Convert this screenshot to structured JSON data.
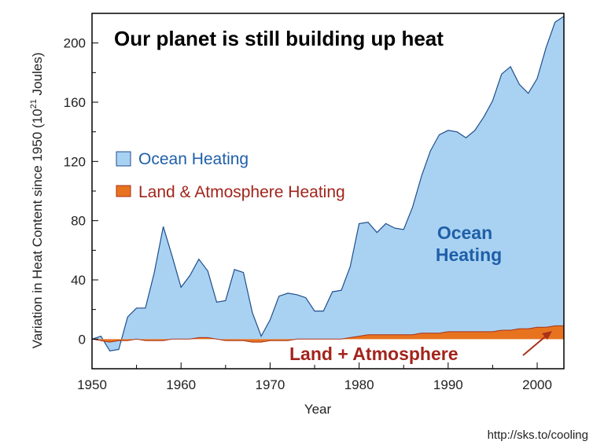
{
  "chart_data": {
    "type": "area",
    "title": "Our planet is still building up heat",
    "xlabel": "Year",
    "ylabel": "Variation in Heat Content since 1950 (10²¹ Joules)",
    "ylabel_main": "Variation in Heat Content since 1950 (10",
    "ylabel_sup": "21",
    "ylabel_end": " Joules)",
    "xlim": [
      1950,
      2003
    ],
    "ylim": [
      -20,
      220
    ],
    "xticks": [
      1950,
      1960,
      1970,
      1980,
      1990,
      2000
    ],
    "yticks": [
      0,
      40,
      80,
      120,
      160,
      200
    ],
    "grid": false,
    "legend_position": "left-middle",
    "colors": {
      "ocean_fill": "#a9d2f2",
      "ocean_line": "#1f4e8c",
      "land_fill": "#e8731f",
      "land_line": "#a8321a",
      "annotation_arrow": "#a8321a",
      "frame": "#000000"
    },
    "x": [
      1950,
      1951,
      1952,
      1953,
      1954,
      1955,
      1956,
      1957,
      1958,
      1959,
      1960,
      1961,
      1962,
      1963,
      1964,
      1965,
      1966,
      1967,
      1968,
      1969,
      1970,
      1971,
      1972,
      1973,
      1974,
      1975,
      1976,
      1977,
      1978,
      1979,
      1980,
      1981,
      1982,
      1983,
      1984,
      1985,
      1986,
      1987,
      1988,
      1989,
      1990,
      1991,
      1992,
      1993,
      1994,
      1995,
      1996,
      1997,
      1998,
      1999,
      2000,
      2001,
      2002,
      2003
    ],
    "series": [
      {
        "name": "Ocean Heating",
        "values": [
          0,
          2,
          -8,
          -7,
          15,
          21,
          21,
          45,
          76,
          56,
          35,
          43,
          54,
          46,
          25,
          26,
          47,
          45,
          18,
          2,
          13,
          29,
          31,
          30,
          28,
          19,
          19,
          32,
          33,
          49,
          78,
          79,
          72,
          78,
          75,
          74,
          89,
          110,
          127,
          138,
          141,
          140,
          136,
          141,
          150,
          161,
          179,
          184,
          172,
          166,
          176,
          197,
          214,
          218
        ]
      },
      {
        "name": "Land & Atmosphere Heating",
        "values": [
          0,
          -1,
          -2,
          -1,
          -1,
          0,
          -1,
          -1,
          -1,
          0,
          0,
          0,
          1,
          1,
          0,
          -1,
          -1,
          -1,
          -2,
          -2,
          -1,
          -1,
          -1,
          0,
          0,
          0,
          0,
          0,
          0,
          1,
          2,
          3,
          3,
          3,
          3,
          3,
          3,
          4,
          4,
          4,
          5,
          5,
          5,
          5,
          5,
          5,
          6,
          6,
          7,
          7,
          8,
          8,
          9,
          9
        ]
      }
    ],
    "legend": [
      {
        "label": "Ocean Heating",
        "color": "#a9d2f2"
      },
      {
        "label": "Land & Atmosphere Heating",
        "color": "#e8731f"
      }
    ],
    "annotations": {
      "ocean_line1": "Ocean",
      "ocean_line2": "Heating",
      "land": "Land + Atmosphere"
    }
  },
  "source_text": "http://sks.to/cooling"
}
